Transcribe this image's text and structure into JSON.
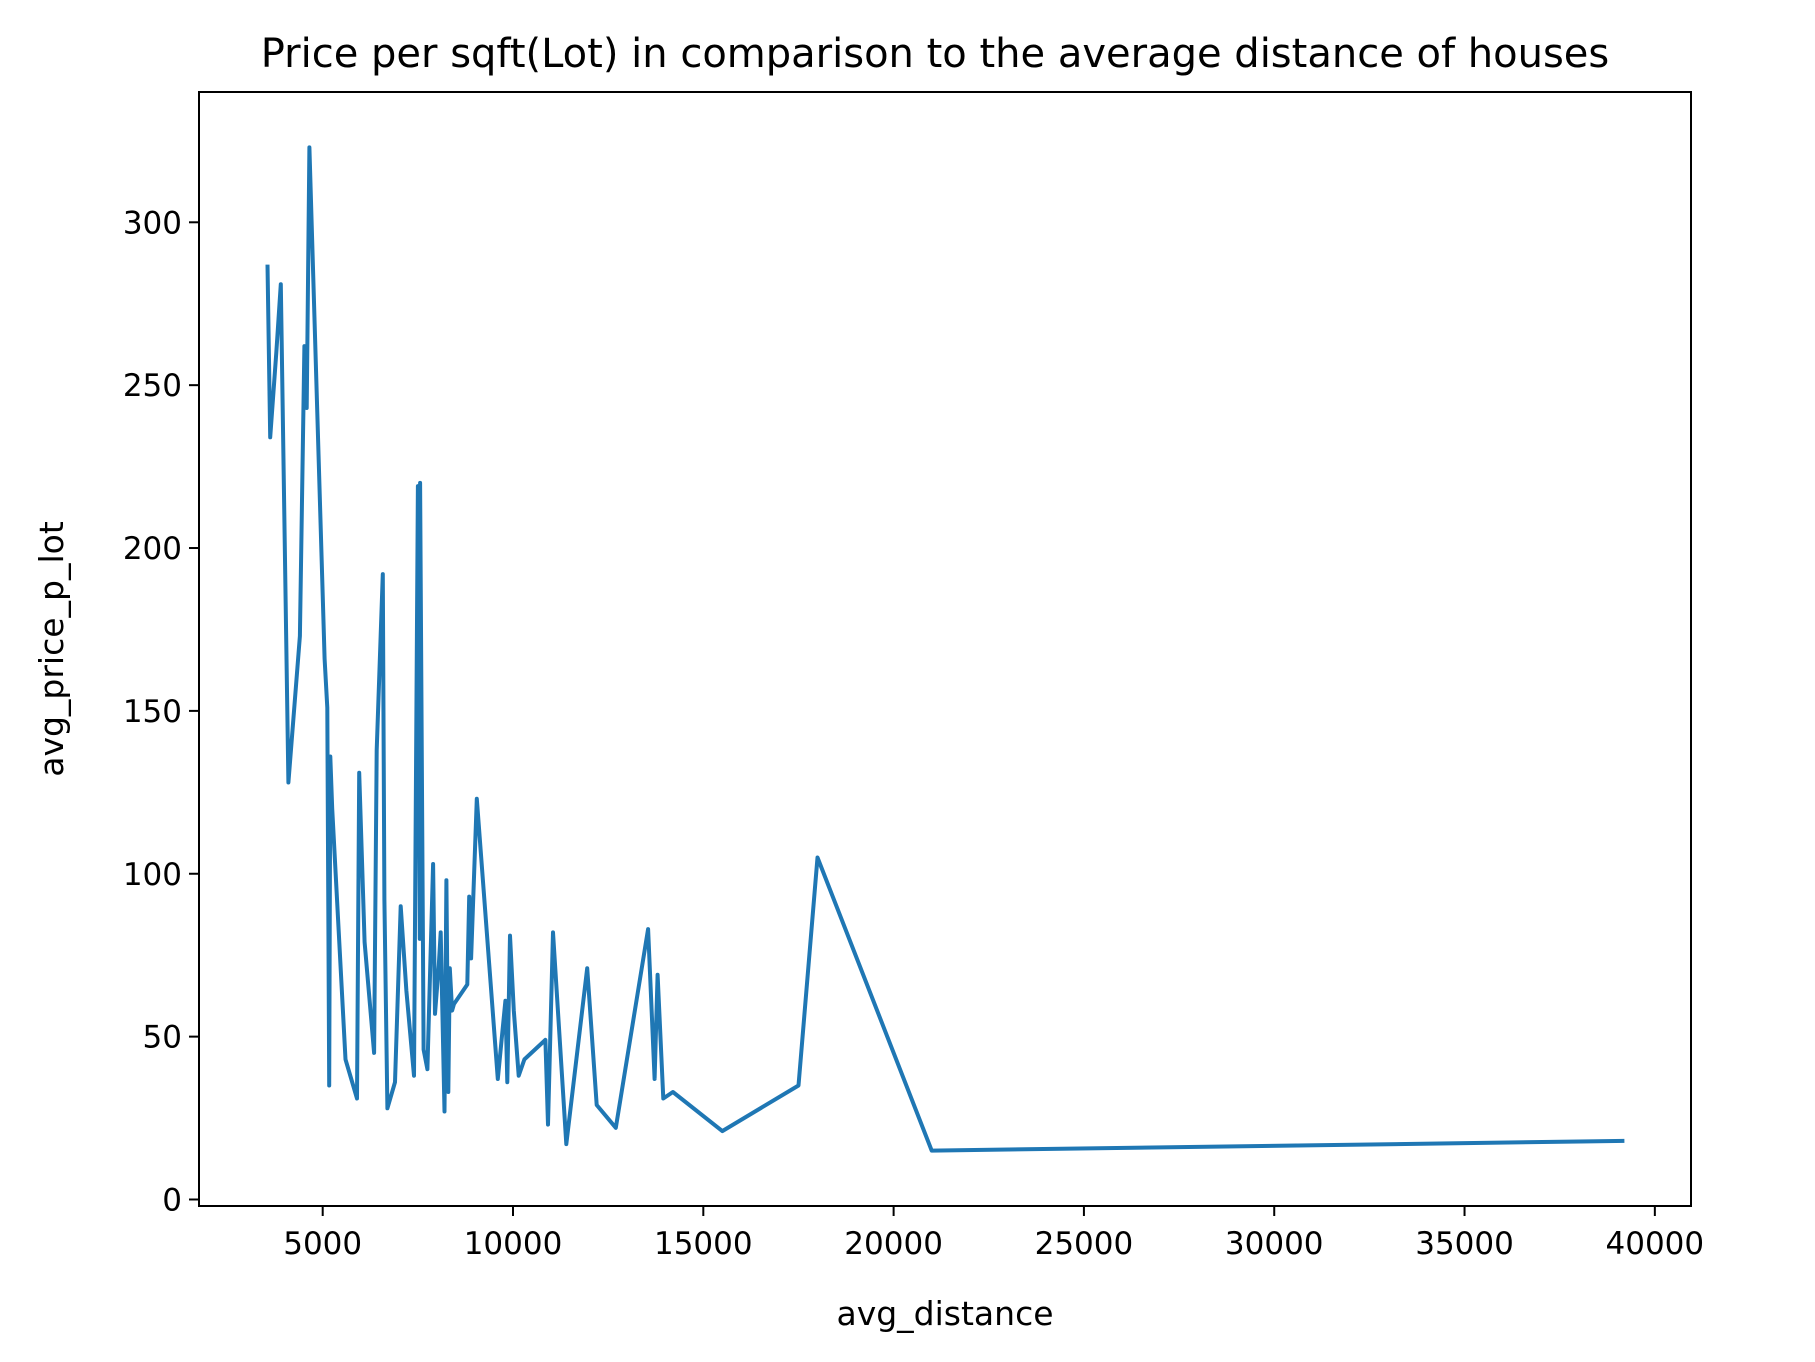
{
  "chart_data": {
    "type": "line",
    "title": "Price per sqft(Lot) in comparison to the average distance of houses",
    "xlabel": "avg_distance",
    "ylabel": "avg_price_p_lot",
    "xlim": [
      1750,
      40950
    ],
    "ylim": [
      -2,
      340
    ],
    "xticks": [
      5000,
      10000,
      15000,
      20000,
      25000,
      30000,
      35000,
      40000
    ],
    "yticks": [
      0,
      50,
      100,
      150,
      200,
      250,
      300
    ],
    "grid": false,
    "legend": "none",
    "line_color": "#1f77b4",
    "series": [
      {
        "x": [
          3550,
          3620,
          3780,
          3900,
          4100,
          4400,
          4520,
          4580,
          4650,
          5050,
          5120,
          5170,
          5200,
          5250,
          5600,
          5900,
          5960,
          6100,
          6350,
          6420,
          6580,
          6620,
          6700,
          6900,
          7050,
          7200,
          7400,
          7500,
          7550,
          7560,
          7650,
          7750,
          7900,
          7950,
          8050,
          8100,
          8200,
          8250,
          8300,
          8340,
          8400,
          8450,
          8800,
          8850,
          8900,
          9050,
          9600,
          9800,
          9850,
          9920,
          10020,
          10150,
          10300,
          10850,
          10920,
          11050,
          11400,
          11950,
          12200,
          12700,
          13550,
          13720,
          13800,
          13950,
          14200,
          15500,
          17500,
          18000,
          21000,
          39200
        ],
        "y": [
          287,
          234,
          260,
          281,
          128,
          173,
          262,
          243,
          323,
          166,
          151,
          35,
          136,
          120,
          43,
          31,
          131,
          79,
          45,
          138,
          192,
          92,
          28,
          36,
          90,
          64,
          38,
          219,
          80,
          220,
          46,
          40,
          103,
          57,
          72,
          82,
          27,
          98,
          33,
          71,
          58,
          60,
          66,
          93,
          74,
          123,
          37,
          61,
          36,
          81,
          58,
          38,
          43,
          49,
          23,
          82,
          17,
          71,
          29,
          22,
          83,
          37,
          69,
          31,
          33,
          21,
          35,
          105,
          15,
          18
        ]
      }
    ]
  }
}
